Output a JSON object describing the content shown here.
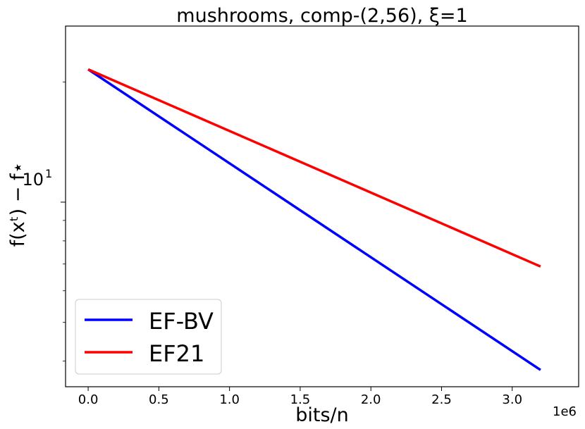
{
  "chart_data": {
    "type": "line",
    "title": "mushrooms, comp-(2,56), ξ=1",
    "xlabel": "bits/n",
    "ylabel": "f(xᵗ) − f⋆",
    "x_offset_label": "1e6",
    "x_scale": "linear",
    "y_scale": "log",
    "xlim": [
      -0.16,
      3.47
    ],
    "ylim": [
      3.45,
      27.6
    ],
    "x_ticks": [
      0.0,
      0.5,
      1.0,
      1.5,
      2.0,
      2.5,
      3.0
    ],
    "x_tick_labels": [
      "0.0",
      "0.5",
      "1.0",
      "1.5",
      "2.0",
      "2.5",
      "3.0"
    ],
    "y_major_ticks": [
      10
    ],
    "y_major_tick_label_base": "10",
    "y_major_tick_label_exp": "1",
    "y_minor_ticks": [
      4,
      5,
      6,
      7,
      8,
      9,
      20
    ],
    "grid": false,
    "legend_position": "lower-left",
    "series": [
      {
        "name": "EF-BV",
        "color": "#0000ff",
        "x": [
          0.0,
          3.2
        ],
        "y": [
          21.5,
          3.8
        ]
      },
      {
        "name": "EF21",
        "color": "#ff0000",
        "x": [
          0.0,
          3.2
        ],
        "y": [
          21.5,
          6.9
        ]
      }
    ]
  }
}
